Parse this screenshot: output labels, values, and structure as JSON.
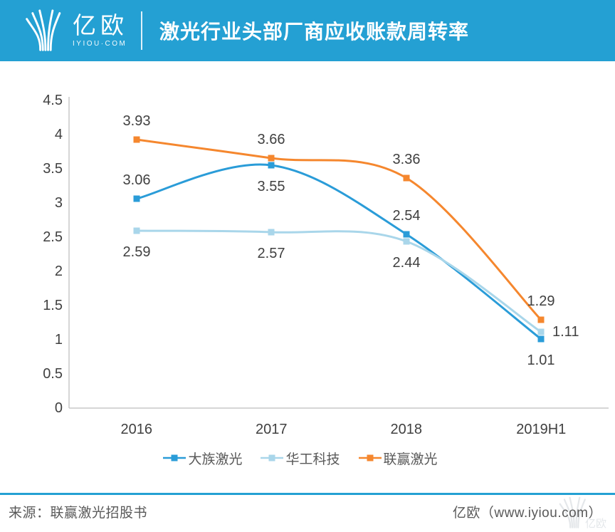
{
  "header": {
    "brand": "亿欧",
    "brand_sub": "IYIOU·COM",
    "title": "激光行业头部厂商应收账款周转率"
  },
  "chart_data": {
    "type": "line",
    "title": "激光行业头部厂商应收账款周转率",
    "categories": [
      "2016",
      "2017",
      "2018",
      "2019H1"
    ],
    "series": [
      {
        "name": "大族激光",
        "color": "#2A9CD8",
        "values": [
          3.06,
          3.55,
          2.54,
          1.01
        ],
        "label_placement": [
          "above",
          "below",
          "above",
          "below"
        ]
      },
      {
        "name": "华工科技",
        "color": "#A9D6EA",
        "values": [
          2.59,
          2.57,
          2.44,
          1.11
        ],
        "label_placement": [
          "below",
          "below",
          "below",
          "right"
        ]
      },
      {
        "name": "联赢激光",
        "color": "#F5872E",
        "values": [
          3.93,
          3.66,
          3.36,
          1.29
        ],
        "label_placement": [
          "above",
          "above",
          "above",
          "above"
        ]
      }
    ],
    "y_axis": {
      "min": 0,
      "max": 4.5,
      "step": 0.5,
      "ticks": [
        "4.5",
        "4",
        "3.5",
        "3",
        "2.5",
        "2",
        "1.5",
        "1",
        "0.5",
        "0"
      ]
    },
    "grid": false,
    "marker": "square",
    "legend_position": "bottom",
    "smooth": true
  },
  "footer": {
    "source": "来源：联赢激光招股书",
    "credit": "亿欧（www.iyiou.com）",
    "watermark_brand": "亿欧"
  },
  "colors": {
    "header_bg": "#24A0D3",
    "separator": "#24A0D3",
    "axis_line": "#C8C8C8",
    "label_text": "#404040",
    "legend_text": "#595959",
    "footer_text": "#595959",
    "watermark": "#C4CBD1"
  }
}
